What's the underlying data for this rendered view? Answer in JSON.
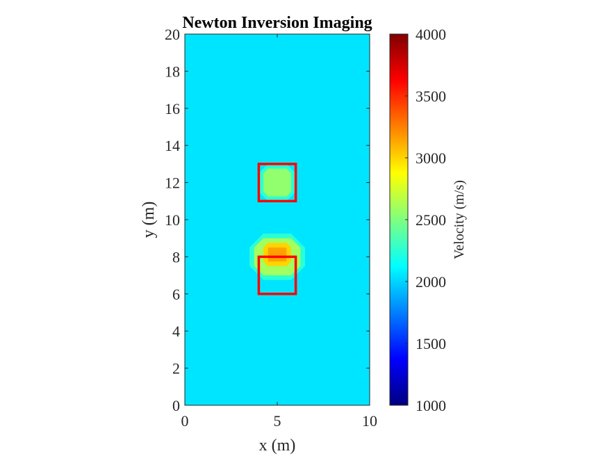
{
  "chart_data": {
    "type": "heatmap",
    "title": "Newton Inversion Imaging",
    "xlabel": "x (m)",
    "ylabel": "y (m)",
    "xlim": [
      0,
      10
    ],
    "ylim": [
      0,
      20
    ],
    "x_ticks": [
      0,
      5,
      10
    ],
    "y_ticks": [
      0,
      2,
      4,
      6,
      8,
      10,
      12,
      14,
      16,
      18,
      20
    ],
    "colormap": "jet",
    "colorbar": {
      "label": "Velocity (m/s)",
      "lim": [
        1000,
        4000
      ],
      "ticks": [
        1000,
        1500,
        2000,
        2500,
        3000,
        3500,
        4000
      ]
    },
    "background_velocity": 2050,
    "anomalies": [
      {
        "center_x": 5,
        "center_y": 12,
        "layers": [
          {
            "x": [
              4,
              6
            ],
            "y": [
              11,
              13
            ],
            "velocity": 2250,
            "corner": 0.5
          },
          {
            "x": [
              4.25,
              5.75
            ],
            "y": [
              11.25,
              12.75
            ],
            "velocity": 2550,
            "corner": 0.25
          }
        ]
      },
      {
        "center_x": 5,
        "center_y": 8,
        "layers": [
          {
            "x": [
              3.5,
              6.5
            ],
            "y": [
              6.75,
              9.25
            ],
            "velocity": 2250,
            "corner": 0.75
          },
          {
            "x": [
              3.75,
              6.25
            ],
            "y": [
              7,
              9
            ],
            "velocity": 2600,
            "corner": 0.5
          },
          {
            "x": [
              4.25,
              5.75
            ],
            "y": [
              7.5,
              8.75
            ],
            "velocity": 3000,
            "corner": 0.25
          },
          {
            "x": [
              4.5,
              5.5
            ],
            "y": [
              7.75,
              8.5
            ],
            "velocity": 3150,
            "corner": 0
          }
        ]
      }
    ],
    "true_boxes": [
      {
        "x": [
          4,
          6
        ],
        "y": [
          11,
          13
        ],
        "color": "#ff0000"
      },
      {
        "x": [
          4,
          6
        ],
        "y": [
          6,
          8
        ],
        "color": "#ff0000"
      }
    ]
  }
}
